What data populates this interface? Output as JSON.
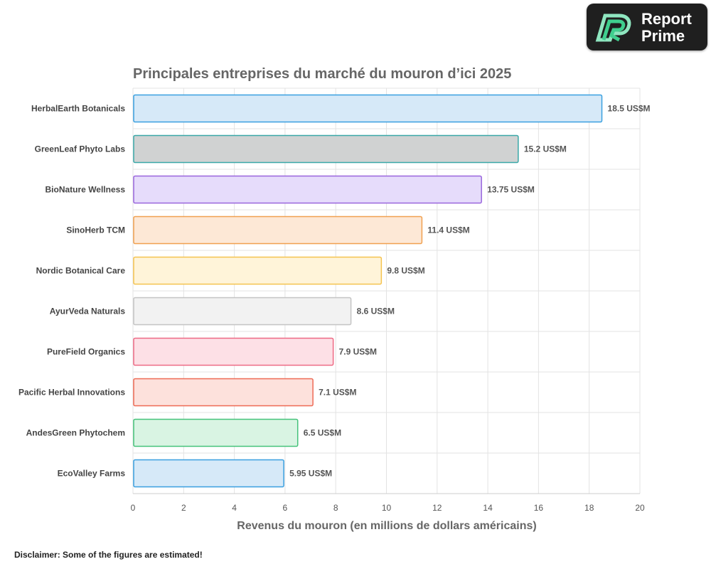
{
  "logo": {
    "line1": "Report",
    "line2": "Prime"
  },
  "disclaimer": "Disclaimer: Some of the figures are estimated!",
  "chart_data": {
    "type": "bar",
    "orientation": "horizontal",
    "title": "Principales entreprises du marché du mouron d’ici 2025",
    "xlabel": "Revenus du mouron (en millions de dollars américains)",
    "ylabel": "",
    "xlim": [
      0,
      20
    ],
    "xticks": [
      0,
      2,
      4,
      6,
      8,
      10,
      12,
      14,
      16,
      18,
      20
    ],
    "grid": true,
    "value_suffix": " US$M",
    "categories": [
      "HerbalEarth Botanicals",
      "GreenLeaf Phyto Labs",
      "BioNature Wellness",
      "SinoHerb TCM",
      "Nordic Botanical Care",
      "AyurVeda Naturals",
      "PureField Organics",
      "Pacific Herbal Innovations",
      "AndesGreen Phytochem",
      "EcoValley Farms"
    ],
    "values": [
      18.5,
      15.2,
      13.75,
      11.4,
      9.8,
      8.6,
      7.9,
      7.1,
      6.5,
      5.95
    ],
    "colors": [
      {
        "fill": "#d6e9f8",
        "stroke": "#3aa0e0"
      },
      {
        "fill": "#d0d2d2",
        "stroke": "#3aa8a8"
      },
      {
        "fill": "#e6dcfb",
        "stroke": "#9966dd"
      },
      {
        "fill": "#fde8d6",
        "stroke": "#f0a050"
      },
      {
        "fill": "#fff4d9",
        "stroke": "#f5c350"
      },
      {
        "fill": "#f2f2f2",
        "stroke": "#c4c4c4"
      },
      {
        "fill": "#fde0e6",
        "stroke": "#ee6a85"
      },
      {
        "fill": "#fde1dc",
        "stroke": "#ee6a55"
      },
      {
        "fill": "#d9f4e3",
        "stroke": "#45c27a"
      },
      {
        "fill": "#d6e9f8",
        "stroke": "#3aa0e0"
      }
    ]
  }
}
